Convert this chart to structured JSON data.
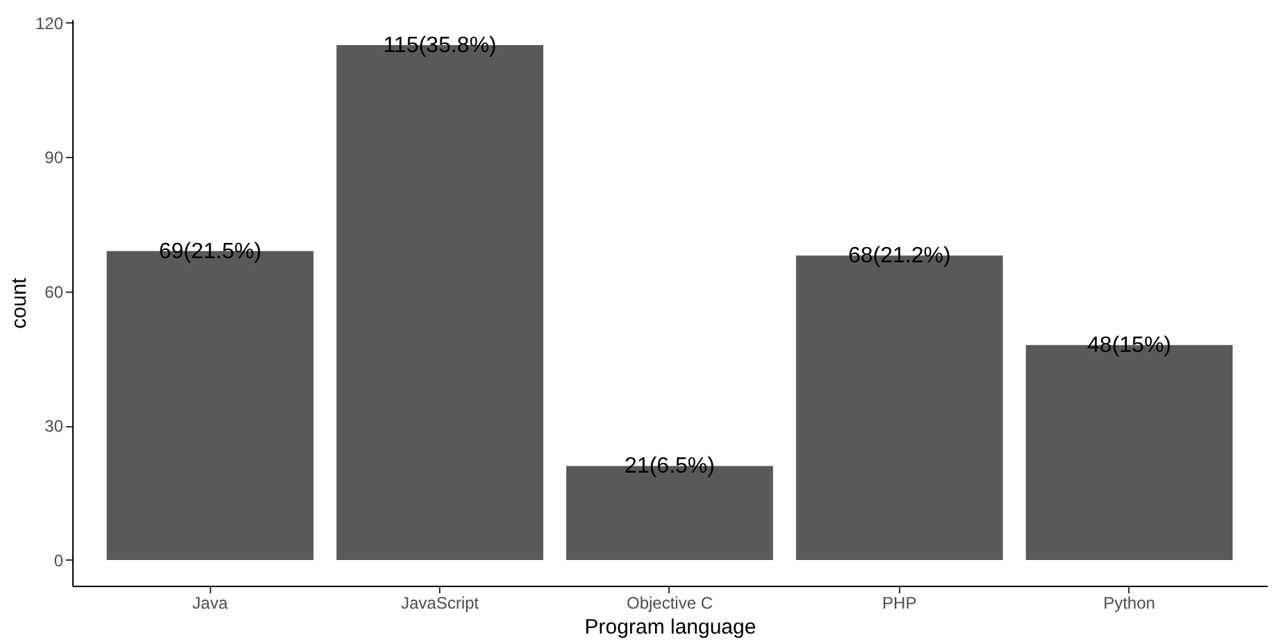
{
  "chart_data": {
    "type": "bar",
    "xlabel": "Program language",
    "ylabel": "count",
    "categories": [
      "Java",
      "JavaScript",
      "Objective C",
      "PHP",
      "Python"
    ],
    "values": [
      69,
      115,
      21,
      68,
      48
    ],
    "value_labels": [
      "69(21.5%)",
      "115(35.8%)",
      "21(6.5%)",
      "68(21.2%)",
      "48(15%)"
    ],
    "color": "#595959",
    "ylim": [
      -5.75,
      120.75
    ],
    "yticks": [
      0,
      30,
      60,
      90,
      120
    ],
    "grid": false
  }
}
